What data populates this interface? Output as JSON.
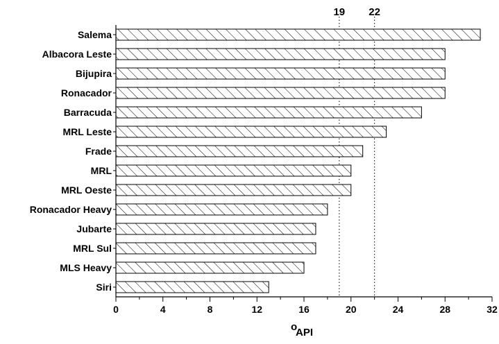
{
  "chart_data": {
    "type": "bar",
    "orientation": "horizontal",
    "categories": [
      "Salema",
      "Albacora Leste",
      "Bijupira",
      "Ronacador",
      "Barracuda",
      "MRL Leste",
      "Frade",
      "MRL",
      "MRL Oeste",
      "Ronacador Heavy",
      "Jubarte",
      "MRL Sul",
      "MLS Heavy",
      "Siri"
    ],
    "values": [
      31,
      28,
      28,
      28,
      26,
      23,
      21,
      20,
      20,
      18,
      17,
      17,
      16,
      13
    ],
    "xlabel_degree": "o",
    "xlabel": "API",
    "xlim": [
      0,
      32
    ],
    "xticks": [
      0,
      4,
      8,
      12,
      16,
      20,
      24,
      28,
      32
    ],
    "reference_lines": [
      {
        "value": 19,
        "label": "19"
      },
      {
        "value": 22,
        "label": "22"
      }
    ],
    "bar_fill": "diagonal-hatch",
    "bar_color": "#000000",
    "grid": false
  }
}
